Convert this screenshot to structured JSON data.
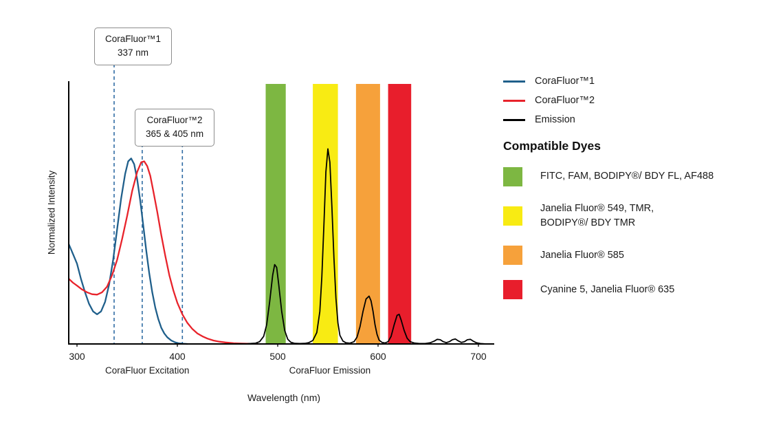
{
  "chart_data": {
    "type": "line",
    "title": "",
    "xlabel": "Wavelength (nm)",
    "ylabel": "Normalized Intensity",
    "xlim": [
      292,
      715
    ],
    "ylim": [
      0,
      1.1
    ],
    "x_ticks": [
      300,
      400,
      500,
      600,
      700
    ],
    "grid": false,
    "legend_position": "right",
    "marker_color": "#2F6BA3",
    "series": [
      {
        "name": "CoraFluor™1",
        "color": "#1F5F8B",
        "points": [
          [
            292,
            0.52
          ],
          [
            296,
            0.47
          ],
          [
            300,
            0.42
          ],
          [
            304,
            0.34
          ],
          [
            308,
            0.27
          ],
          [
            312,
            0.21
          ],
          [
            316,
            0.17
          ],
          [
            320,
            0.155
          ],
          [
            324,
            0.17
          ],
          [
            328,
            0.22
          ],
          [
            332,
            0.31
          ],
          [
            336,
            0.44
          ],
          [
            340,
            0.6
          ],
          [
            344,
            0.76
          ],
          [
            348,
            0.89
          ],
          [
            351,
            0.955
          ],
          [
            354,
            0.97
          ],
          [
            357,
            0.94
          ],
          [
            360,
            0.86
          ],
          [
            363,
            0.75
          ],
          [
            366,
            0.62
          ],
          [
            369,
            0.49
          ],
          [
            372,
            0.37
          ],
          [
            375,
            0.27
          ],
          [
            378,
            0.19
          ],
          [
            381,
            0.13
          ],
          [
            384,
            0.085
          ],
          [
            387,
            0.055
          ],
          [
            390,
            0.035
          ],
          [
            394,
            0.018
          ],
          [
            398,
            0.008
          ],
          [
            402,
            0.003
          ],
          [
            406,
            0.001
          ],
          [
            410,
            0
          ]
        ]
      },
      {
        "name": "CoraFluor™2",
        "color": "#E8232B",
        "points": [
          [
            292,
            0.34
          ],
          [
            296,
            0.32
          ],
          [
            300,
            0.305
          ],
          [
            305,
            0.285
          ],
          [
            310,
            0.27
          ],
          [
            315,
            0.26
          ],
          [
            320,
            0.258
          ],
          [
            325,
            0.27
          ],
          [
            330,
            0.3
          ],
          [
            335,
            0.36
          ],
          [
            340,
            0.44
          ],
          [
            345,
            0.55
          ],
          [
            350,
            0.67
          ],
          [
            355,
            0.8
          ],
          [
            360,
            0.9
          ],
          [
            364,
            0.95
          ],
          [
            367,
            0.955
          ],
          [
            370,
            0.93
          ],
          [
            373,
            0.88
          ],
          [
            376,
            0.8
          ],
          [
            380,
            0.69
          ],
          [
            384,
            0.57
          ],
          [
            388,
            0.46
          ],
          [
            392,
            0.36
          ],
          [
            396,
            0.28
          ],
          [
            400,
            0.215
          ],
          [
            405,
            0.155
          ],
          [
            410,
            0.11
          ],
          [
            415,
            0.078
          ],
          [
            420,
            0.055
          ],
          [
            425,
            0.04
          ],
          [
            430,
            0.028
          ],
          [
            436,
            0.018
          ],
          [
            442,
            0.012
          ],
          [
            448,
            0.008
          ],
          [
            456,
            0.004
          ],
          [
            464,
            0.002
          ],
          [
            472,
            0.001
          ],
          [
            480,
            0
          ]
        ]
      },
      {
        "name": "Emission",
        "color": "#000000",
        "points": [
          [
            450,
            0
          ],
          [
            470,
            0.001
          ],
          [
            478,
            0.004
          ],
          [
            482,
            0.012
          ],
          [
            486,
            0.04
          ],
          [
            489,
            0.1
          ],
          [
            492,
            0.22
          ],
          [
            495,
            0.36
          ],
          [
            497,
            0.415
          ],
          [
            499,
            0.4
          ],
          [
            501,
            0.31
          ],
          [
            504,
            0.17
          ],
          [
            507,
            0.07
          ],
          [
            510,
            0.025
          ],
          [
            513,
            0.009
          ],
          [
            517,
            0.003
          ],
          [
            522,
            0.002
          ],
          [
            527,
            0.003
          ],
          [
            531,
            0.007
          ],
          [
            535,
            0.018
          ],
          [
            539,
            0.06
          ],
          [
            542,
            0.17
          ],
          [
            544,
            0.35
          ],
          [
            546,
            0.62
          ],
          [
            548,
            0.9
          ],
          [
            550,
            1.02
          ],
          [
            552,
            0.95
          ],
          [
            554,
            0.72
          ],
          [
            556,
            0.45
          ],
          [
            558,
            0.24
          ],
          [
            560,
            0.11
          ],
          [
            562,
            0.045
          ],
          [
            565,
            0.015
          ],
          [
            568,
            0.006
          ],
          [
            572,
            0.004
          ],
          [
            576,
            0.012
          ],
          [
            579,
            0.035
          ],
          [
            582,
            0.09
          ],
          [
            585,
            0.17
          ],
          [
            588,
            0.235
          ],
          [
            591,
            0.25
          ],
          [
            593,
            0.225
          ],
          [
            595,
            0.17
          ],
          [
            597,
            0.1
          ],
          [
            599,
            0.05
          ],
          [
            601,
            0.02
          ],
          [
            604,
            0.008
          ],
          [
            607,
            0.005
          ],
          [
            610,
            0.012
          ],
          [
            613,
            0.04
          ],
          [
            616,
            0.1
          ],
          [
            619,
            0.15
          ],
          [
            621,
            0.155
          ],
          [
            623,
            0.125
          ],
          [
            626,
            0.07
          ],
          [
            629,
            0.03
          ],
          [
            632,
            0.012
          ],
          [
            636,
            0.005
          ],
          [
            641,
            0.002
          ],
          [
            647,
            0.002
          ],
          [
            652,
            0.006
          ],
          [
            656,
            0.015
          ],
          [
            659,
            0.024
          ],
          [
            662,
            0.022
          ],
          [
            665,
            0.012
          ],
          [
            668,
            0.007
          ],
          [
            671,
            0.012
          ],
          [
            674,
            0.022
          ],
          [
            677,
            0.026
          ],
          [
            680,
            0.016
          ],
          [
            683,
            0.008
          ],
          [
            686,
            0.012
          ],
          [
            689,
            0.022
          ],
          [
            692,
            0.024
          ],
          [
            695,
            0.014
          ],
          [
            698,
            0.006
          ],
          [
            702,
            0.002
          ],
          [
            708,
            0
          ]
        ]
      }
    ],
    "bands": [
      {
        "from": 488,
        "to": 508,
        "color": "#7DB742",
        "dyes": "FITC, FAM, BODIPY®/ BDY FL, AF488"
      },
      {
        "from": 535,
        "to": 560,
        "color": "#F8EB13",
        "dyes": "Janelia Fluor® 549, TMR, BODIPY®/ BDY TMR"
      },
      {
        "from": 578,
        "to": 602,
        "color": "#F6A13B",
        "dyes": "Janelia Fluor® 585"
      },
      {
        "from": 610,
        "to": 633,
        "color": "#E81E2C",
        "dyes": "Cyanine 5, Janelia Fluor® 635"
      }
    ],
    "marker_lines": [
      {
        "nm": 337,
        "label": "CoraFluor™1 337 nm"
      },
      {
        "nm": 365,
        "label": "CoraFluor™2 365 nm"
      },
      {
        "nm": 405,
        "label": "CoraFluor™2 405 nm"
      }
    ],
    "x_axis_captions": [
      {
        "text": "CoraFluor Excitation",
        "center_nm": 370
      },
      {
        "text": "CoraFluor Emission",
        "center_nm": 552
      }
    ]
  },
  "annotations": [
    {
      "line1": "CoraFluor™1",
      "line2": "337 nm"
    },
    {
      "line1": "CoraFluor™2",
      "line2": "365 & 405 nm"
    }
  ],
  "legend": {
    "series": [
      {
        "label": "CoraFluor™1",
        "color": "#1F5F8B"
      },
      {
        "label": "CoraFluor™2",
        "color": "#E8232B"
      },
      {
        "label": "Emission",
        "color": "#000000"
      }
    ],
    "dyes_heading": "Compatible Dyes",
    "dyes": [
      {
        "color": "#7DB742",
        "lines": [
          "FITC, FAM, BODIPY®/ BDY FL, AF488"
        ]
      },
      {
        "color": "#F8EB13",
        "lines": [
          "Janelia Fluor® 549, TMR,",
          "BODIPY®/ BDY TMR"
        ]
      },
      {
        "color": "#F6A13B",
        "lines": [
          "Janelia Fluor® 585"
        ]
      },
      {
        "color": "#E81E2C",
        "lines": [
          "Cyanine 5, Janelia Fluor® 635"
        ]
      }
    ]
  }
}
